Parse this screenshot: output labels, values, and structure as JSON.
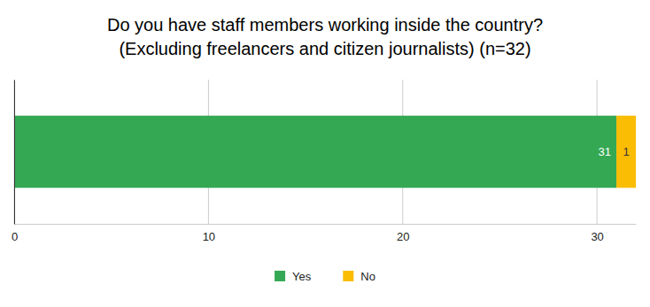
{
  "chart_data": {
    "type": "bar",
    "orientation": "horizontal",
    "stacked": true,
    "title": "Do you have staff members working inside the country?\n(Excluding freelancers and citizen journalists) (n=32)",
    "categories": [
      null
    ],
    "series": [
      {
        "name": "Yes",
        "color": "#34a853",
        "values": [
          31
        ]
      },
      {
        "name": "No",
        "color": "#fbbc04",
        "values": [
          1
        ]
      }
    ],
    "xlim": [
      0,
      32
    ],
    "xticks": [
      0,
      10,
      20,
      30
    ],
    "grid": true,
    "data_labels": true,
    "legend": "bottom"
  }
}
